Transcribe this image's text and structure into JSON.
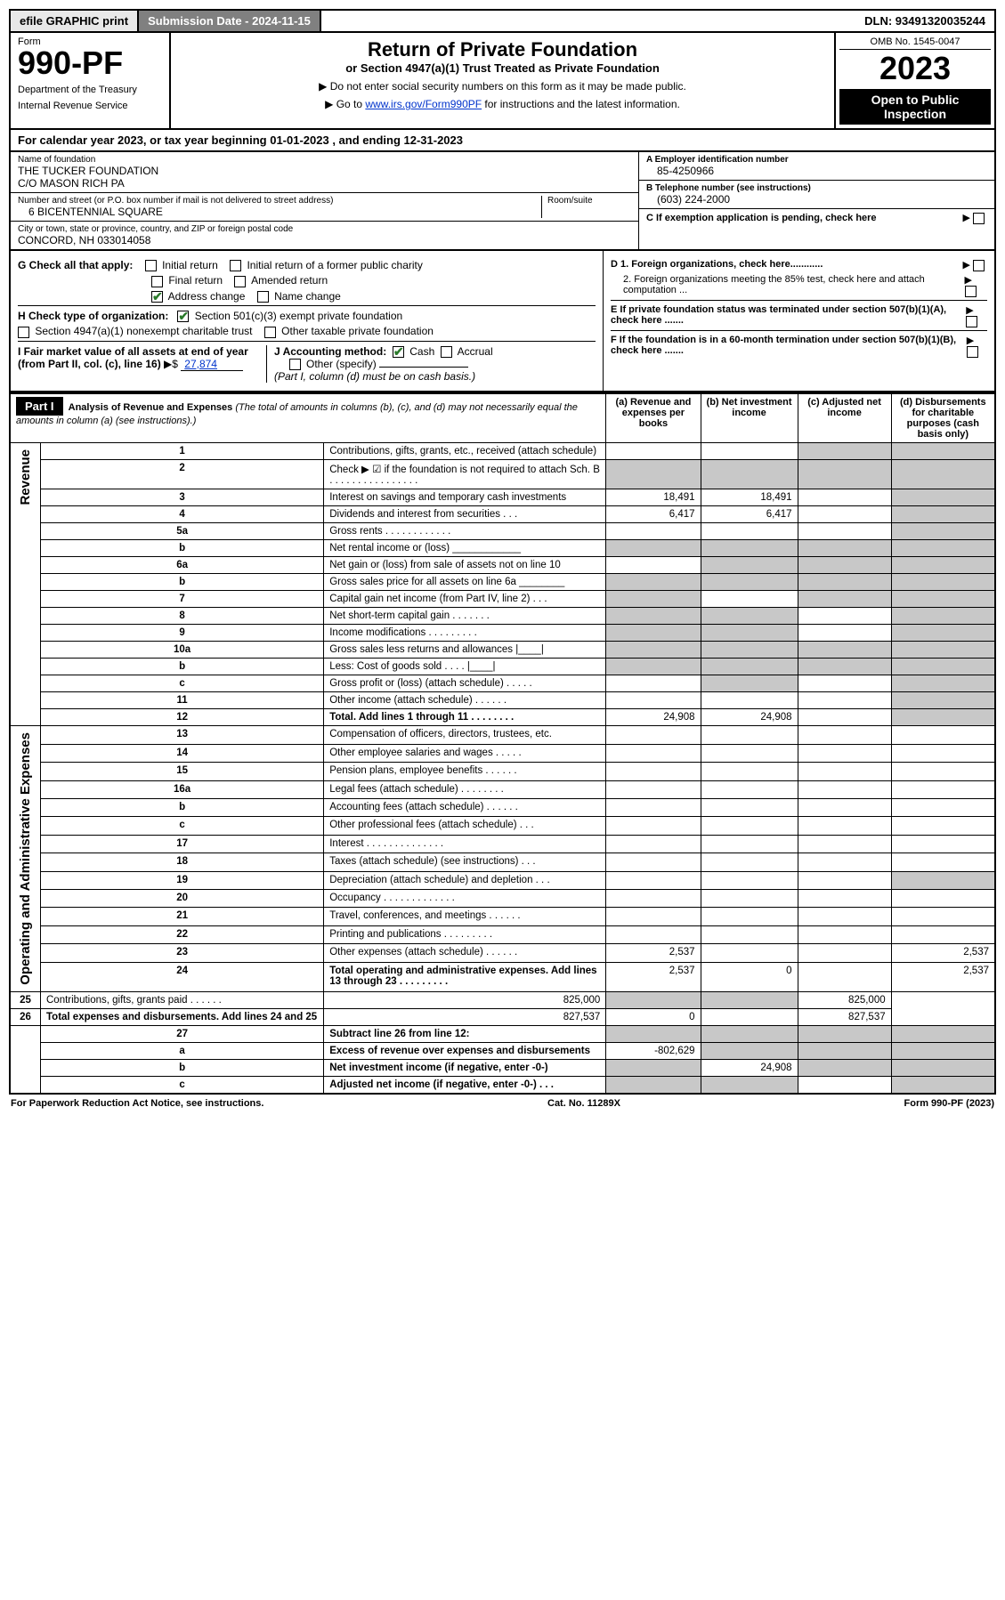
{
  "topbar": {
    "efile": "efile GRAPHIC print",
    "submission": "Submission Date - 2024-11-15",
    "dln": "DLN: 93491320035244"
  },
  "header": {
    "form_label": "Form",
    "form_number": "990-PF",
    "dept1": "Department of the Treasury",
    "dept2": "Internal Revenue Service",
    "title": "Return of Private Foundation",
    "subtitle": "or Section 4947(a)(1) Trust Treated as Private Foundation",
    "instr1": "▶ Do not enter social security numbers on this form as it may be made public.",
    "instr2_pre": "▶ Go to ",
    "instr2_link": "www.irs.gov/Form990PF",
    "instr2_post": " for instructions and the latest information.",
    "omb": "OMB No. 1545-0047",
    "year": "2023",
    "open": "Open to Public Inspection"
  },
  "cal_year": "For calendar year 2023, or tax year beginning 01-01-2023             , and ending 12-31-2023",
  "foundation": {
    "name_lbl": "Name of foundation",
    "name1": "THE TUCKER FOUNDATION",
    "name2": "C/O MASON RICH PA",
    "addr_lbl": "Number and street (or P.O. box number if mail is not delivered to street address)",
    "addr": "6 BICENTENNIAL SQUARE",
    "room_lbl": "Room/suite",
    "city_lbl": "City or town, state or province, country, and ZIP or foreign postal code",
    "city": "CONCORD, NH  033014058",
    "ein_lbl": "A Employer identification number",
    "ein": "85-4250966",
    "tel_lbl": "B Telephone number (see instructions)",
    "tel": "(603) 224-2000",
    "c_lbl": "C If exemption application is pending, check here",
    "d1": "D 1. Foreign organizations, check here............",
    "d2": "2. Foreign organizations meeting the 85% test, check here and attach computation ...",
    "e_lbl": "E  If private foundation status was terminated under section 507(b)(1)(A), check here .......",
    "f_lbl": "F  If the foundation is in a 60-month termination under section 507(b)(1)(B), check here ......."
  },
  "checks": {
    "g_lbl": "G Check all that apply:",
    "initial": "Initial return",
    "initial_former": "Initial return of a former public charity",
    "final": "Final return",
    "amended": "Amended return",
    "address": "Address change",
    "name": "Name change",
    "h_lbl": "H Check type of organization:",
    "h1": "Section 501(c)(3) exempt private foundation",
    "h2": "Section 4947(a)(1) nonexempt charitable trust",
    "h3": "Other taxable private foundation",
    "i_lbl": "I Fair market value of all assets at end of year (from Part II, col. (c), line 16)",
    "i_val": "27,874",
    "j_lbl": "J Accounting method:",
    "j_cash": "Cash",
    "j_accrual": "Accrual",
    "j_other": "Other (specify)",
    "j_note": "(Part I, column (d) must be on cash basis.)"
  },
  "part1": {
    "label": "Part I",
    "title": "Analysis of Revenue and Expenses",
    "title_note": "(The total of amounts in columns (b), (c), and (d) may not necessarily equal the amounts in column (a) (see instructions).)",
    "col_a": "(a)   Revenue and expenses per books",
    "col_b": "(b)   Net investment income",
    "col_c": "(c)   Adjusted net income",
    "col_d": "(d)   Disbursements for charitable purposes (cash basis only)"
  },
  "revenue_label": "Revenue",
  "expenses_label": "Operating and Administrative Expenses",
  "rows": [
    {
      "n": "1",
      "desc": "Contributions, gifts, grants, etc., received (attach schedule)",
      "a": "",
      "b": "",
      "c_shade": true,
      "d_shade": true
    },
    {
      "n": "2",
      "desc": "Check ▶ ☑ if the foundation is not required to attach Sch. B   .  .  .  .  .  .  .  .  .  .  .  .  .  .  .  .",
      "a_shade": true,
      "b_shade": true,
      "c_shade": true,
      "d_shade": true,
      "bold": false
    },
    {
      "n": "3",
      "desc": "Interest on savings and temporary cash investments",
      "a": "18,491",
      "b": "18,491",
      "c": "",
      "d_shade": true
    },
    {
      "n": "4",
      "desc": "Dividends and interest from securities   .   .   .",
      "a": "6,417",
      "b": "6,417",
      "c": "",
      "d_shade": true
    },
    {
      "n": "5a",
      "desc": "Gross rents   .   .   .   .   .   .   .   .   .   .   .   .",
      "a": "",
      "b": "",
      "c": "",
      "d_shade": true
    },
    {
      "n": "b",
      "desc": "Net rental income or (loss)  ____________",
      "a_shade": true,
      "b_shade": true,
      "c_shade": true,
      "d_shade": true
    },
    {
      "n": "6a",
      "desc": "Net gain or (loss) from sale of assets not on line 10",
      "a": "",
      "b_shade": true,
      "c_shade": true,
      "d_shade": true
    },
    {
      "n": "b",
      "desc": "Gross sales price for all assets on line 6a ________",
      "a_shade": true,
      "b_shade": true,
      "c_shade": true,
      "d_shade": true
    },
    {
      "n": "7",
      "desc": "Capital gain net income (from Part IV, line 2)   .   .   .",
      "a_shade": true,
      "b": "",
      "c_shade": true,
      "d_shade": true
    },
    {
      "n": "8",
      "desc": "Net short-term capital gain   .   .   .   .   .   .   .",
      "a_shade": true,
      "b_shade": true,
      "c": "",
      "d_shade": true
    },
    {
      "n": "9",
      "desc": "Income modifications  .   .   .   .   .   .   .   .   .",
      "a_shade": true,
      "b_shade": true,
      "c": "",
      "d_shade": true
    },
    {
      "n": "10a",
      "desc": "Gross sales less returns and allowances  |____|",
      "a_shade": true,
      "b_shade": true,
      "c_shade": true,
      "d_shade": true
    },
    {
      "n": "b",
      "desc": "Less: Cost of goods sold   .   .   .   .   |____|",
      "a_shade": true,
      "b_shade": true,
      "c_shade": true,
      "d_shade": true
    },
    {
      "n": "c",
      "desc": "Gross profit or (loss) (attach schedule)   .   .   .   .   .",
      "a": "",
      "b_shade": true,
      "c": "",
      "d_shade": true
    },
    {
      "n": "11",
      "desc": "Other income (attach schedule)   .   .   .   .   .   .",
      "a": "",
      "b": "",
      "c": "",
      "d_shade": true
    },
    {
      "n": "12",
      "desc": "Total. Add lines 1 through 11   .   .   .   .   .   .   .   .",
      "a": "24,908",
      "b": "24,908",
      "c": "",
      "d_shade": true,
      "bold": true
    },
    {
      "n": "13",
      "desc": "Compensation of officers, directors, trustees, etc.",
      "a": "",
      "b": "",
      "c": "",
      "d": ""
    },
    {
      "n": "14",
      "desc": "Other employee salaries and wages   .   .   .   .   .",
      "a": "",
      "b": "",
      "c": "",
      "d": ""
    },
    {
      "n": "15",
      "desc": "Pension plans, employee benefits  .   .   .   .   .   .",
      "a": "",
      "b": "",
      "c": "",
      "d": ""
    },
    {
      "n": "16a",
      "desc": "Legal fees (attach schedule) .   .   .   .   .   .   .   .",
      "a": "",
      "b": "",
      "c": "",
      "d": ""
    },
    {
      "n": "b",
      "desc": "Accounting fees (attach schedule)  .   .   .   .   .   .",
      "a": "",
      "b": "",
      "c": "",
      "d": ""
    },
    {
      "n": "c",
      "desc": "Other professional fees (attach schedule)   .   .   .",
      "a": "",
      "b": "",
      "c": "",
      "d": ""
    },
    {
      "n": "17",
      "desc": "Interest  .   .   .   .   .   .   .   .   .   .   .   .   .   .",
      "a": "",
      "b": "",
      "c": "",
      "d": ""
    },
    {
      "n": "18",
      "desc": "Taxes (attach schedule) (see instructions)    .   .   .",
      "a": "",
      "b": "",
      "c": "",
      "d": ""
    },
    {
      "n": "19",
      "desc": "Depreciation (attach schedule) and depletion   .   .   .",
      "a": "",
      "b": "",
      "c": "",
      "d_shade": true
    },
    {
      "n": "20",
      "desc": "Occupancy .   .   .   .   .   .   .   .   .   .   .   .   .",
      "a": "",
      "b": "",
      "c": "",
      "d": ""
    },
    {
      "n": "21",
      "desc": "Travel, conferences, and meetings  .   .   .   .   .   .",
      "a": "",
      "b": "",
      "c": "",
      "d": ""
    },
    {
      "n": "22",
      "desc": "Printing and publications  .   .   .   .   .   .   .   .   .",
      "a": "",
      "b": "",
      "c": "",
      "d": ""
    },
    {
      "n": "23",
      "desc": "Other expenses (attach schedule)  .   .   .   .   .   .",
      "a": "2,537",
      "b": "",
      "c": "",
      "d": "2,537"
    },
    {
      "n": "24",
      "desc": "Total operating and administrative expenses. Add lines 13 through 23   .   .   .   .   .   .   .   .   .",
      "a": "2,537",
      "b": "0",
      "c": "",
      "d": "2,537",
      "bold": true
    },
    {
      "n": "25",
      "desc": "Contributions, gifts, grants paid    .   .   .   .   .   .",
      "a": "825,000",
      "b_shade": true,
      "c_shade": true,
      "d": "825,000"
    },
    {
      "n": "26",
      "desc": "Total expenses and disbursements. Add lines 24 and 25",
      "a": "827,537",
      "b": "0",
      "c": "",
      "d": "827,537",
      "bold": true
    },
    {
      "n": "27",
      "desc": "Subtract line 26 from line 12:",
      "a_shade": true,
      "b_shade": true,
      "c_shade": true,
      "d_shade": true,
      "bold": true
    },
    {
      "n": "a",
      "desc": "Excess of revenue over expenses and disbursements",
      "a": "-802,629",
      "b_shade": true,
      "c_shade": true,
      "d_shade": true,
      "bold": true
    },
    {
      "n": "b",
      "desc": "Net investment income (if negative, enter -0-)",
      "a_shade": true,
      "b": "24,908",
      "c_shade": true,
      "d_shade": true,
      "bold": true
    },
    {
      "n": "c",
      "desc": "Adjusted net income (if negative, enter -0-)   .   .   .",
      "a_shade": true,
      "b_shade": true,
      "c": "",
      "d_shade": true,
      "bold": true
    }
  ],
  "footer": {
    "left": "For Paperwork Reduction Act Notice, see instructions.",
    "center": "Cat. No. 11289X",
    "right": "Form 990-PF (2023)"
  },
  "colors": {
    "shade": "#c8c8c8",
    "black": "#000000",
    "link": "#0033cc",
    "check_green": "#2a7a2a"
  }
}
